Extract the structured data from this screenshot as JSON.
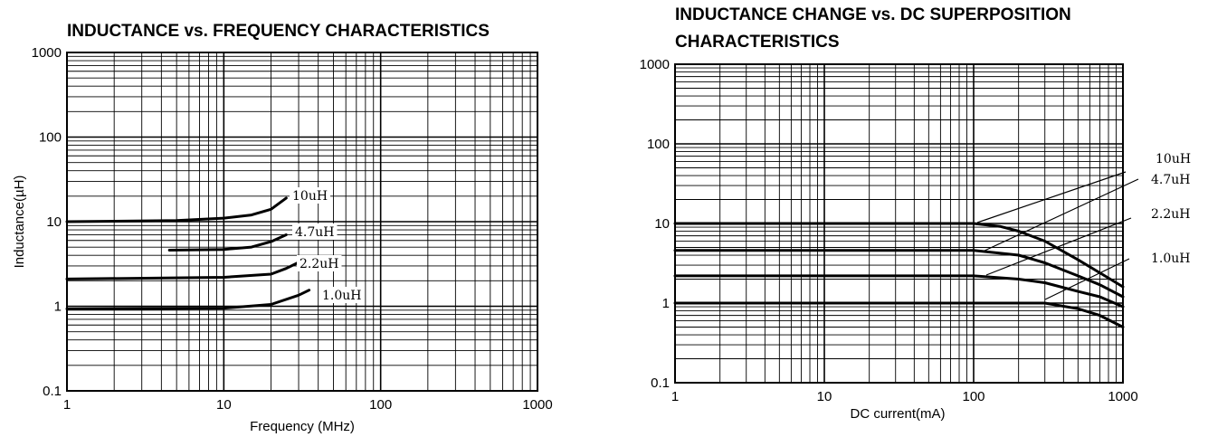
{
  "chart_data": [
    {
      "type": "line",
      "title": "INDUCTANCE vs. FREQUENCY CHARACTERISTICS",
      "xlabel": "Frequency (MHz)",
      "ylabel": "Inductance(µH)",
      "xscale": "log",
      "yscale": "log",
      "xlim": [
        1,
        1000
      ],
      "ylim": [
        0.1,
        1000
      ],
      "xticks": [
        "1",
        "10",
        "100",
        "1000"
      ],
      "yticks": [
        "0.1",
        "1",
        "10",
        "100",
        "1000"
      ],
      "grid": true,
      "series": [
        {
          "name": "10uH",
          "x": [
            1,
            5,
            10,
            15,
            20,
            25
          ],
          "y": [
            10,
            10.3,
            11,
            12,
            14,
            19
          ]
        },
        {
          "name": "4.7uH",
          "x": [
            4.5,
            10,
            15,
            20,
            25
          ],
          "y": [
            4.6,
            4.7,
            5.0,
            5.8,
            7.0
          ]
        },
        {
          "name": "2.2uH",
          "x": [
            1,
            10,
            20,
            25,
            30
          ],
          "y": [
            2.1,
            2.2,
            2.4,
            2.8,
            3.3
          ]
        },
        {
          "name": "1.0uH",
          "x": [
            1,
            10,
            20,
            30,
            35
          ],
          "y": [
            0.93,
            0.95,
            1.05,
            1.35,
            1.55
          ]
        }
      ]
    },
    {
      "type": "line",
      "title": "INDUCTANCE CHANGE vs. DC SUPERPOSITION",
      "title_line2": "CHARACTERISTICS",
      "xlabel": "DC current(mA)",
      "xscale": "log",
      "yscale": "log",
      "xlim": [
        1,
        1000
      ],
      "ylim": [
        0.1,
        1000
      ],
      "xticks": [
        "1",
        "10",
        "100",
        "1000"
      ],
      "yticks": [
        "0.1",
        "1",
        "10",
        "100",
        "1000"
      ],
      "grid": true,
      "series": [
        {
          "name": "10uH",
          "x": [
            1,
            100,
            150,
            200,
            300,
            500,
            700,
            1000
          ],
          "y": [
            10,
            10,
            9.2,
            8,
            6,
            3.5,
            2.4,
            1.6
          ]
        },
        {
          "name": "4.7uH",
          "x": [
            1,
            100,
            200,
            300,
            500,
            700,
            1000
          ],
          "y": [
            4.6,
            4.6,
            4.0,
            3.2,
            2.2,
            1.7,
            1.2
          ]
        },
        {
          "name": "2.2uH",
          "x": [
            1,
            100,
            200,
            300,
            500,
            700,
            1000
          ],
          "y": [
            2.2,
            2.2,
            2.0,
            1.8,
            1.4,
            1.2,
            0.9
          ]
        },
        {
          "name": "1.0uH",
          "x": [
            1,
            100,
            300,
            500,
            700,
            1000
          ],
          "y": [
            1.0,
            1.0,
            1.0,
            0.85,
            0.7,
            0.5
          ]
        }
      ]
    }
  ]
}
